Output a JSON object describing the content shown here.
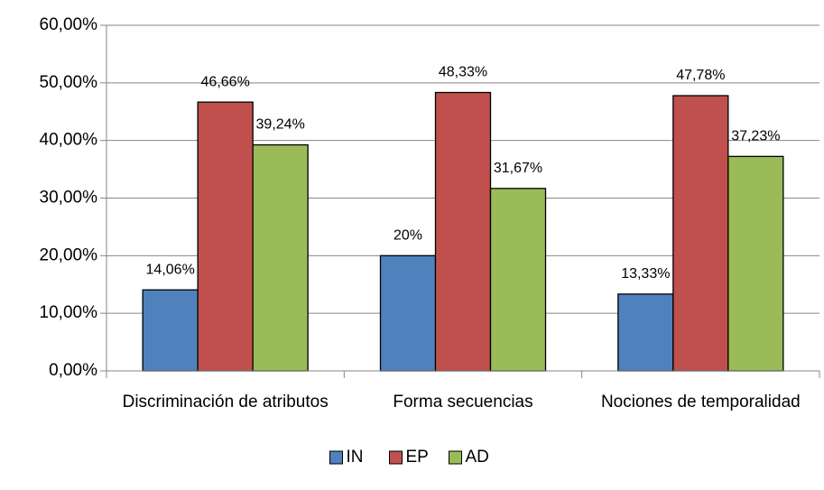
{
  "chart_data": {
    "type": "bar",
    "categories": [
      "Discriminación de atributos",
      "Forma secuencias",
      "Nociones de temporalidad"
    ],
    "series": [
      {
        "name": "IN",
        "color": "#4f81bd",
        "values": [
          14.06,
          20,
          13.33
        ],
        "value_labels": [
          "14,06%",
          "20%",
          "13,33%"
        ]
      },
      {
        "name": "EP",
        "color": "#c0504d",
        "values": [
          46.66,
          48.33,
          47.78
        ],
        "value_labels": [
          "46,66%",
          "48,33%",
          "47,78%"
        ]
      },
      {
        "name": "AD",
        "color": "#9bbb59",
        "values": [
          39.24,
          31.67,
          37.23
        ],
        "value_labels": [
          "39,24%",
          "31,67%",
          "37,23%"
        ]
      }
    ],
    "ylim": [
      0,
      60
    ],
    "yticks": [
      {
        "value": 0,
        "label": "0,00%"
      },
      {
        "value": 10,
        "label": "10,00%"
      },
      {
        "value": 20,
        "label": "20,00%"
      },
      {
        "value": 30,
        "label": "30,00%"
      },
      {
        "value": 40,
        "label": "40,00%"
      },
      {
        "value": 50,
        "label": "50,00%"
      },
      {
        "value": 60,
        "label": "60,00%"
      }
    ],
    "grid": true,
    "legend": "bottom"
  }
}
